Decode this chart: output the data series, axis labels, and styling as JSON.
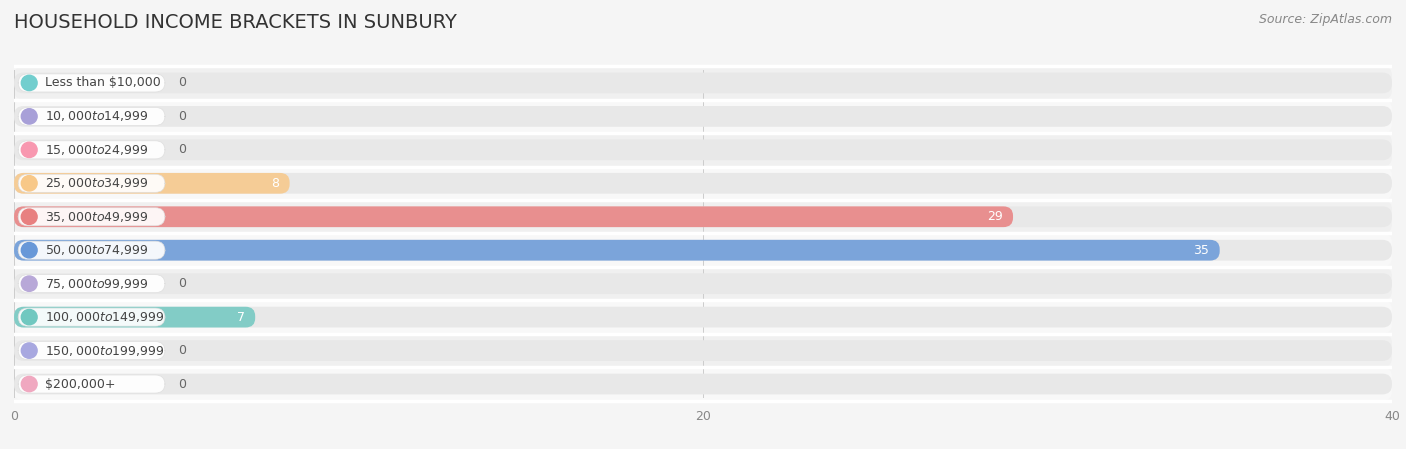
{
  "title": "HOUSEHOLD INCOME BRACKETS IN SUNBURY",
  "source": "Source: ZipAtlas.com",
  "categories": [
    "Less than $10,000",
    "$10,000 to $14,999",
    "$15,000 to $24,999",
    "$25,000 to $34,999",
    "$35,000 to $49,999",
    "$50,000 to $74,999",
    "$75,000 to $99,999",
    "$100,000 to $149,999",
    "$150,000 to $199,999",
    "$200,000+"
  ],
  "values": [
    0,
    0,
    0,
    8,
    29,
    35,
    0,
    7,
    0,
    0
  ],
  "bar_colors": [
    "#72cece",
    "#a8a0d8",
    "#f898b0",
    "#f8c888",
    "#e88080",
    "#6898d8",
    "#b8a8d8",
    "#70c8c0",
    "#a8a8e0",
    "#f0a8c0"
  ],
  "xlim": [
    0,
    40
  ],
  "xticks": [
    0,
    20,
    40
  ],
  "background_color": "#f5f5f5",
  "bar_bg_color": "#e8e8e8",
  "row_bg_colors": [
    "#f0f0f0",
    "#f8f8f8"
  ],
  "title_fontsize": 14,
  "label_fontsize": 9,
  "value_fontsize": 9,
  "source_fontsize": 9
}
